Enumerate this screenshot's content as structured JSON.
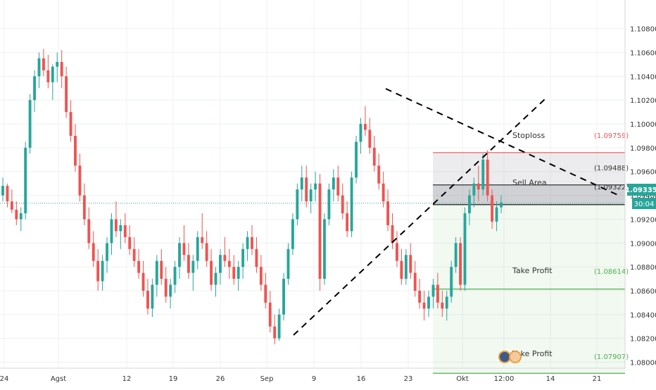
{
  "chart_data": {
    "type": "candlestick",
    "title": "",
    "xlabel": "",
    "ylabel": "",
    "grid": true,
    "ylim": [
      1.0795,
      1.1104
    ],
    "y_ticks": [
      "1.10800",
      "1.10600",
      "1.10400",
      "1.10200",
      "1.10000",
      "1.09800",
      "1.09600",
      "1.09400",
      "1.09200",
      "1.09000",
      "1.08800",
      "1.08600",
      "1.08400",
      "1.08200",
      "1.08000"
    ],
    "x_ticks": [
      "24",
      "Agst",
      "12",
      "19",
      "26",
      "Sep",
      "9",
      "16",
      "23",
      "Okt",
      "12:00",
      "14",
      "21"
    ],
    "candles": [
      [
        1.094,
        1.0955,
        1.0935,
        1.0948
      ],
      [
        1.0948,
        1.095,
        1.093,
        1.0935
      ],
      [
        1.0935,
        1.0945,
        1.0925,
        1.0928
      ],
      [
        1.0928,
        1.0935,
        1.0915,
        1.092
      ],
      [
        1.092,
        1.093,
        1.091,
        1.0925
      ],
      [
        1.0925,
        1.0985,
        1.092,
        1.098
      ],
      [
        1.098,
        1.1025,
        1.0975,
        1.102
      ],
      [
        1.102,
        1.1045,
        1.101,
        1.104
      ],
      [
        1.104,
        1.106,
        1.103,
        1.1055
      ],
      [
        1.1055,
        1.1063,
        1.104,
        1.1045
      ],
      [
        1.1045,
        1.1058,
        1.103,
        1.1035
      ],
      [
        1.1035,
        1.105,
        1.102,
        1.1048
      ],
      [
        1.1048,
        1.106,
        1.1035,
        1.1052
      ],
      [
        1.1052,
        1.1062,
        1.103,
        1.104
      ],
      [
        1.104,
        1.1048,
        1.1005,
        1.101
      ],
      [
        1.101,
        1.102,
        1.0985,
        1.099
      ],
      [
        1.099,
        1.1,
        1.096,
        1.0965
      ],
      [
        1.0965,
        1.0975,
        1.0935,
        1.094
      ],
      [
        1.094,
        1.095,
        1.0915,
        1.092
      ],
      [
        1.092,
        1.093,
        1.0895,
        1.09
      ],
      [
        1.09,
        1.091,
        1.088,
        1.0885
      ],
      [
        1.0885,
        1.0895,
        1.086,
        1.0868
      ],
      [
        1.0868,
        1.089,
        1.086,
        1.0885
      ],
      [
        1.0885,
        1.0905,
        1.0875,
        1.09
      ],
      [
        1.09,
        1.0925,
        1.089,
        1.092
      ],
      [
        1.092,
        1.0935,
        1.0905,
        1.091
      ],
      [
        1.091,
        1.092,
        1.0895,
        1.0915
      ],
      [
        1.0915,
        1.0925,
        1.09,
        1.0905
      ],
      [
        1.0905,
        1.0915,
        1.089,
        1.0895
      ],
      [
        1.0895,
        1.0905,
        1.088,
        1.0885
      ],
      [
        1.0885,
        1.0895,
        1.087,
        1.0875
      ],
      [
        1.0875,
        1.0885,
        1.0855,
        1.086
      ],
      [
        1.086,
        1.087,
        1.084,
        1.0845
      ],
      [
        1.0845,
        1.087,
        1.0838,
        1.0865
      ],
      [
        1.0865,
        1.089,
        1.0855,
        1.0885
      ],
      [
        1.0885,
        1.0895,
        1.0865,
        1.087
      ],
      [
        1.087,
        1.088,
        1.085,
        1.0855
      ],
      [
        1.0855,
        1.087,
        1.0845,
        1.0865
      ],
      [
        1.0865,
        1.0885,
        1.0858,
        1.088
      ],
      [
        1.088,
        1.0905,
        1.087,
        1.09
      ],
      [
        1.09,
        1.0915,
        1.0885,
        1.089
      ],
      [
        1.089,
        1.09,
        1.087,
        1.0875
      ],
      [
        1.0875,
        1.089,
        1.086,
        1.0885
      ],
      [
        1.0885,
        1.091,
        1.0878,
        1.0905
      ],
      [
        1.0905,
        1.0925,
        1.0895,
        1.09
      ],
      [
        1.09,
        1.091,
        1.088,
        1.0885
      ],
      [
        1.0885,
        1.0895,
        1.086,
        1.0865
      ],
      [
        1.0865,
        1.088,
        1.0855,
        1.0875
      ],
      [
        1.0875,
        1.0895,
        1.0865,
        1.089
      ],
      [
        1.089,
        1.0905,
        1.088,
        1.0885
      ],
      [
        1.0885,
        1.0895,
        1.087,
        1.088
      ],
      [
        1.088,
        1.089,
        1.0865,
        1.087
      ],
      [
        1.087,
        1.0885,
        1.086,
        1.088
      ],
      [
        1.088,
        1.09,
        1.087,
        1.0895
      ],
      [
        1.0895,
        1.091,
        1.0885,
        1.0905
      ],
      [
        1.0905,
        1.0915,
        1.089,
        1.0895
      ],
      [
        1.0895,
        1.0905,
        1.0875,
        1.088
      ],
      [
        1.088,
        1.089,
        1.086,
        1.0865
      ],
      [
        1.0865,
        1.0875,
        1.0845,
        1.085
      ],
      [
        1.085,
        1.086,
        1.0825,
        1.083
      ],
      [
        1.083,
        1.084,
        1.0815,
        1.082
      ],
      [
        1.082,
        1.0845,
        1.0818,
        1.084
      ],
      [
        1.084,
        1.0875,
        1.0835,
        1.087
      ],
      [
        1.087,
        1.09,
        1.0865,
        1.0895
      ],
      [
        1.0895,
        1.0925,
        1.089,
        1.092
      ],
      [
        1.092,
        1.095,
        1.0915,
        1.0945
      ],
      [
        1.0945,
        1.0965,
        1.0935,
        1.0955
      ],
      [
        1.0955,
        1.0965,
        1.093,
        1.0935
      ],
      [
        1.0935,
        1.095,
        1.0925,
        1.0945
      ],
      [
        1.0945,
        1.096,
        1.0935,
        1.095
      ],
      [
        1.095,
        1.0958,
        1.086,
        1.087
      ],
      [
        1.087,
        1.0925,
        1.0865,
        1.092
      ],
      [
        1.092,
        1.095,
        1.0915,
        1.0945
      ],
      [
        1.0945,
        1.0962,
        1.0935,
        1.0955
      ],
      [
        1.0955,
        1.0965,
        1.0935,
        1.094
      ],
      [
        1.094,
        1.095,
        1.092,
        1.0925
      ],
      [
        1.0925,
        1.0935,
        1.0905,
        1.091
      ],
      [
        1.091,
        1.096,
        1.0905,
        1.0955
      ],
      [
        1.0955,
        1.099,
        1.095,
        1.0985
      ],
      [
        1.0985,
        1.1005,
        1.0975,
        1.1
      ],
      [
        1.1,
        1.1015,
        1.099,
        1.0995
      ],
      [
        1.0995,
        1.1005,
        1.0975,
        1.098
      ],
      [
        1.098,
        1.099,
        1.096,
        1.0965
      ],
      [
        1.0965,
        1.0975,
        1.0945,
        1.095
      ],
      [
        1.095,
        1.096,
        1.093,
        1.0935
      ],
      [
        1.0935,
        1.0945,
        1.091,
        1.0915
      ],
      [
        1.0915,
        1.0925,
        1.0895,
        1.09
      ],
      [
        1.09,
        1.091,
        1.088,
        1.0885
      ],
      [
        1.0885,
        1.0895,
        1.0865,
        1.087
      ],
      [
        1.087,
        1.0895,
        1.0865,
        1.089
      ],
      [
        1.089,
        1.09,
        1.087,
        1.0875
      ],
      [
        1.0875,
        1.0885,
        1.0855,
        1.086
      ],
      [
        1.086,
        1.087,
        1.0845,
        1.085
      ],
      [
        1.085,
        1.086,
        1.0835,
        1.0845
      ],
      [
        1.0845,
        1.086,
        1.0838,
        1.0855
      ],
      [
        1.0855,
        1.087,
        1.0845,
        1.0865
      ],
      [
        1.0865,
        1.0875,
        1.0845,
        1.085
      ],
      [
        1.085,
        1.086,
        1.0838,
        1.0845
      ],
      [
        1.0845,
        1.086,
        1.0835,
        1.0855
      ],
      [
        1.0855,
        1.0885,
        1.085,
        1.088
      ],
      [
        1.088,
        1.0905,
        1.0875,
        1.09
      ],
      [
        1.09,
        1.0905,
        1.086,
        1.0865
      ],
      [
        1.0865,
        1.093,
        1.086,
        1.0925
      ],
      [
        1.0925,
        1.0945,
        1.0915,
        1.094
      ],
      [
        1.094,
        1.0955,
        1.093,
        1.095
      ],
      [
        1.095,
        1.0965,
        1.0935,
        1.0945
      ],
      [
        1.0945,
        1.0975,
        1.094,
        1.097
      ],
      [
        1.097,
        1.0978,
        1.0935,
        1.094
      ],
      [
        1.094,
        1.0945,
        1.0912,
        1.0918
      ],
      [
        1.0918,
        1.0935,
        1.091,
        1.093
      ],
      [
        1.093,
        1.094,
        1.0925,
        1.0934
      ]
    ],
    "annotations": {
      "stoploss": {
        "label": "Stoploss",
        "price": "(1.09759)",
        "value": 1.09759
      },
      "level_1": {
        "price": "(1.09488)",
        "value": 1.09488
      },
      "sell_area": {
        "label": "Sell Area",
        "price": "(1.09322)",
        "value": 1.09322
      },
      "take_profit_1": {
        "label": "Take Profit",
        "price": "(1.08614)",
        "value": 1.08614
      },
      "take_profit_2": {
        "label": "Take Profit",
        "price": "(1.07907)",
        "value": 1.07907
      }
    },
    "current_price": {
      "value": 1.09335,
      "label": "1.09335",
      "countdown": "30:04"
    },
    "colors": {
      "up": "#26a69a",
      "down": "#ef5350",
      "stoploss": "#ef5350",
      "take_profit": "#4caf50",
      "sell_zone": "#787b86"
    }
  }
}
